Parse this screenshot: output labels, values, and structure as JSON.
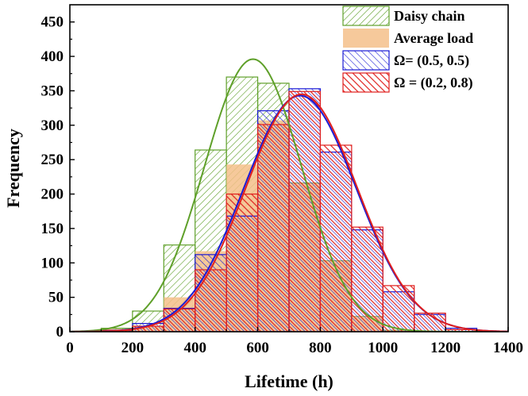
{
  "chart_data": {
    "type": "bar",
    "xlabel": "Lifetime (h)",
    "ylabel": "Frequency",
    "xlim": [
      0,
      1400
    ],
    "ylim": [
      0,
      475
    ],
    "xticks": [
      "0",
      "200",
      "400",
      "600",
      "800",
      "1000",
      "1200",
      "1400"
    ],
    "yticks": [
      "0",
      "50",
      "100",
      "150",
      "200",
      "250",
      "300",
      "350",
      "400",
      "450"
    ],
    "grid": false,
    "legend_position": "top-right",
    "bin_edges": [
      100,
      200,
      300,
      400,
      500,
      600,
      700,
      800,
      900,
      1000,
      1100,
      1200,
      1300
    ],
    "series": [
      {
        "name": "Daisy chain",
        "style": "hatch-left",
        "color": "#5fa02a",
        "values": [
          5,
          30,
          126,
          264,
          370,
          361,
          216,
          103,
          22,
          2,
          0,
          0
        ],
        "fit": {
          "type": "normal",
          "mean": 585,
          "sd": 155,
          "peak": 396
        }
      },
      {
        "name": "Average load",
        "style": "solid",
        "color": "#f5c08a",
        "values": [
          4,
          8,
          50,
          117,
          243,
          307,
          216,
          103,
          22,
          2,
          0,
          0
        ]
      },
      {
        "name": "Ω= (0.5, 0.5)",
        "style": "hatch-right",
        "color": "#1a1ad6",
        "values": [
          2,
          12,
          34,
          112,
          168,
          321,
          353,
          261,
          148,
          58,
          25,
          5
        ],
        "fit": {
          "type": "normal",
          "mean": 735,
          "sd": 180,
          "peak": 343
        }
      },
      {
        "name": "Ω = (0.2, 0.8)",
        "style": "hatch-right",
        "color": "#e0201e",
        "values": [
          2,
          8,
          33,
          90,
          200,
          301,
          349,
          271,
          152,
          67,
          27,
          3
        ],
        "fit": {
          "type": "normal",
          "mean": 740,
          "sd": 178,
          "peak": 345
        }
      }
    ]
  }
}
